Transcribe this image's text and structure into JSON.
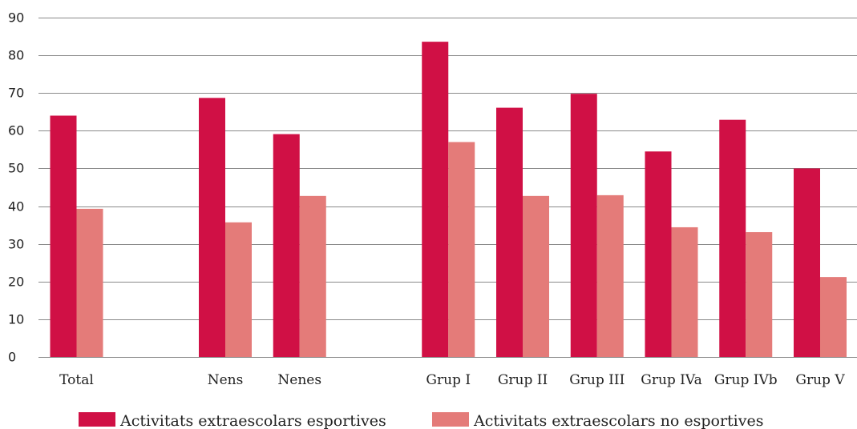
{
  "chart_data": {
    "type": "bar",
    "categories": [
      "Total",
      "",
      "Nens",
      "Nenes",
      "",
      "Grup I",
      "Grup II",
      "Grup III",
      "Grup IVa",
      "Grup IVb",
      "Grup V"
    ],
    "series": [
      {
        "name": "Activitats extraescolars esportives",
        "color": "#d01045",
        "values": [
          64.0,
          null,
          68.7,
          59.1,
          null,
          83.6,
          66.1,
          69.8,
          54.5,
          62.9,
          50.0
        ]
      },
      {
        "name": "Activitats extraescolars no esportives",
        "color": "#e47b79",
        "values": [
          39.3,
          null,
          35.7,
          42.7,
          null,
          57.0,
          42.7,
          42.9,
          34.4,
          33.1,
          21.2
        ]
      }
    ],
    "yticks": [
      0,
      10,
      20,
      30,
      40,
      50,
      60,
      70,
      80,
      90
    ],
    "ylim": [
      0,
      90
    ],
    "grid": true,
    "legend_position": "bottom"
  }
}
